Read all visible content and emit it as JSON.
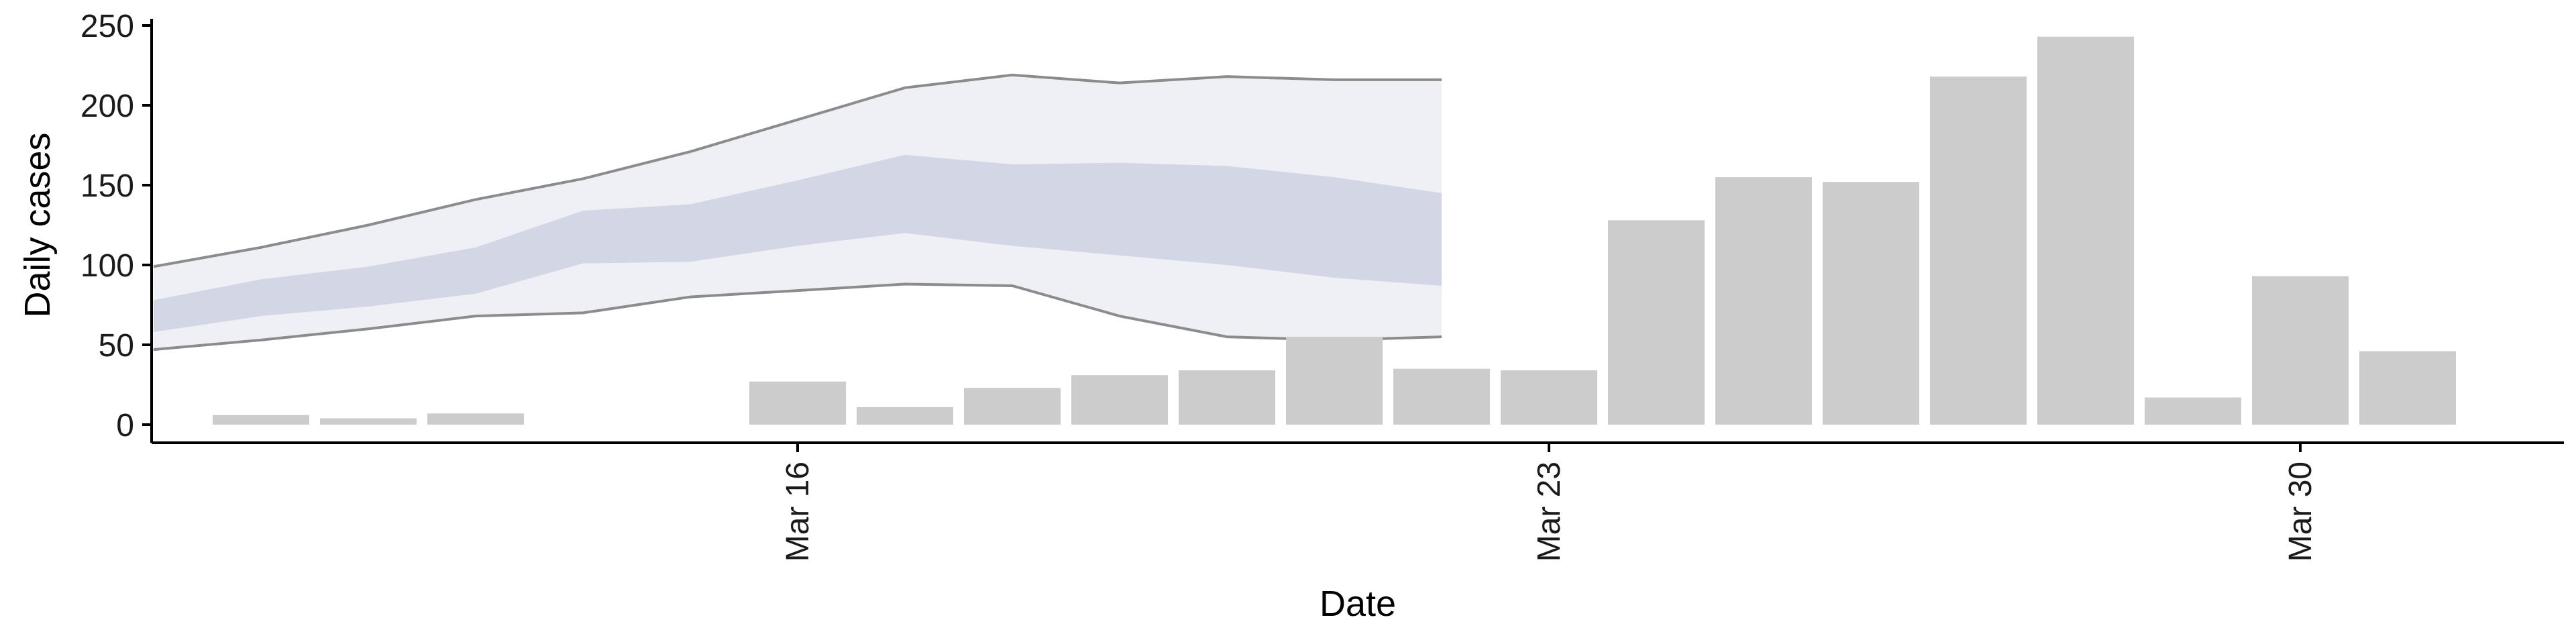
{
  "chart_data": {
    "type": "bar",
    "xlabel": "Date",
    "ylabel": "Daily cases",
    "ylim": [
      0,
      250
    ],
    "yticks": [
      0,
      50,
      100,
      150,
      200,
      250
    ],
    "xticks": [
      {
        "date": "2020-03-16",
        "label": "Mar 16"
      },
      {
        "date": "2020-03-23",
        "label": "Mar 23"
      },
      {
        "date": "2020-03-30",
        "label": "Mar 30"
      }
    ],
    "grid": false,
    "colors": {
      "bar": "#cccccc",
      "band_outer": "#eceef5",
      "band_inner": "#c9cede",
      "band_line": "#8c8c8c",
      "axis": "#000000"
    },
    "observed": {
      "name": "",
      "dates": [
        "2020-03-11",
        "2020-03-12",
        "2020-03-13",
        "2020-03-14",
        "2020-03-15",
        "2020-03-16",
        "2020-03-17",
        "2020-03-18",
        "2020-03-19",
        "2020-03-20",
        "2020-03-21",
        "2020-03-22",
        "2020-03-23",
        "2020-03-24",
        "2020-03-25",
        "2020-03-26",
        "2020-03-27",
        "2020-03-28",
        "2020-03-29",
        "2020-03-30",
        "2020-03-31"
      ],
      "values": [
        6,
        4,
        7,
        0,
        0,
        27,
        11,
        23,
        31,
        34,
        55,
        35,
        34,
        128,
        155,
        152,
        218,
        243,
        17,
        93,
        46
      ]
    },
    "forecast": {
      "dates": [
        "2020-03-10",
        "2020-03-11",
        "2020-03-12",
        "2020-03-13",
        "2020-03-14",
        "2020-03-15",
        "2020-03-16",
        "2020-03-17",
        "2020-03-18",
        "2020-03-19",
        "2020-03-20",
        "2020-03-21",
        "2020-03-22"
      ],
      "outer_low": [
        47,
        53,
        60,
        68,
        70,
        80,
        84,
        88,
        87,
        68,
        55,
        53,
        55
      ],
      "outer_high": [
        99,
        111,
        125,
        141,
        154,
        171,
        191,
        211,
        219,
        214,
        218,
        216,
        216
      ],
      "inner_low": [
        58,
        68,
        74,
        82,
        101,
        102,
        112,
        120,
        112,
        106,
        100,
        92,
        87
      ],
      "inner_high": [
        78,
        91,
        99,
        111,
        134,
        138,
        153,
        169,
        163,
        164,
        162,
        155,
        145
      ]
    }
  }
}
